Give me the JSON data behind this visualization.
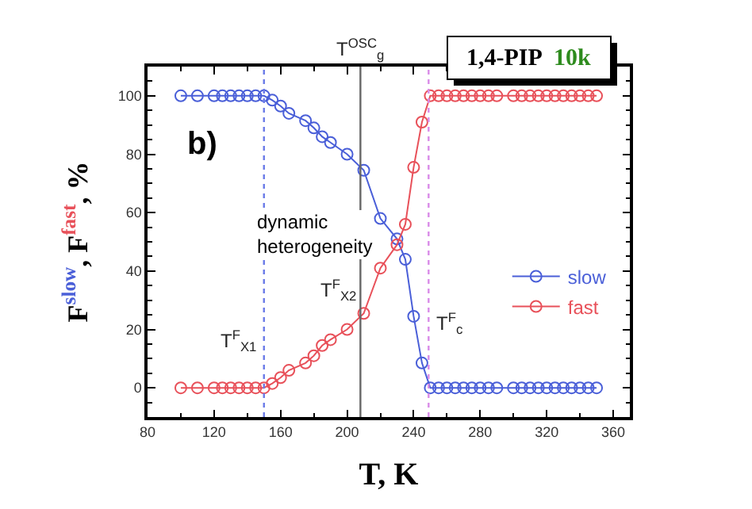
{
  "chart_data": {
    "type": "line",
    "title": "1,4-PIP",
    "subtitle": "10k",
    "xlabel": "T, K",
    "ylabel": "F$^{slow}$, F$^{fast}$, %",
    "xlim": [
      80,
      370
    ],
    "xticks": [
      80,
      120,
      160,
      200,
      240,
      280,
      320,
      360
    ],
    "ylim": [
      -10,
      110
    ],
    "yticks": [
      0,
      20,
      40,
      60,
      80,
      100
    ],
    "x": [
      100,
      110,
      120,
      125,
      130,
      135,
      140,
      145,
      150,
      155,
      160,
      165,
      175,
      180,
      185,
      190,
      200,
      210,
      220,
      230,
      235,
      240,
      245,
      250,
      255,
      260,
      265,
      270,
      275,
      280,
      285,
      290,
      300,
      305,
      310,
      315,
      320,
      325,
      330,
      335,
      340,
      345,
      350
    ],
    "series": [
      {
        "name": "slow",
        "color": "#4a5fd8",
        "values": [
          100,
          100,
          100,
          100,
          100,
          100,
          100,
          100,
          100,
          98.5,
          96.5,
          94,
          91.5,
          89,
          86,
          84,
          80,
          74.5,
          58,
          51,
          44,
          24.5,
          8.5,
          0,
          0,
          0,
          0,
          0,
          0,
          0,
          0,
          0,
          0,
          0,
          0,
          0,
          0,
          0,
          0,
          0,
          0,
          0,
          0
        ]
      },
      {
        "name": "fast",
        "color": "#e8515a",
        "values": [
          0,
          0,
          0,
          0,
          0,
          0,
          0,
          0,
          0,
          1.5,
          3.5,
          6,
          8.5,
          11,
          14.5,
          16.5,
          20,
          25.5,
          41,
          49,
          56,
          75.5,
          91,
          100,
          100,
          100,
          100,
          100,
          100,
          100,
          100,
          100,
          100,
          100,
          100,
          100,
          100,
          100,
          100,
          100,
          100,
          100,
          100
        ]
      }
    ],
    "ref_lines": [
      {
        "axis": "x",
        "value": 150,
        "label": "T$^{F}$$_{X1}$",
        "color": "#6b7be8",
        "line_style": "dotted"
      },
      {
        "axis": "x",
        "value": 208,
        "label": "T$^{OSC}$$_{g}$",
        "color": "#666666",
        "line_style": "solid"
      },
      {
        "axis": "x",
        "value": 249,
        "label": "T$^{F}$$_{c}$",
        "color": "#d98be8",
        "line_style": "dotted"
      }
    ],
    "annotations": [
      "b)",
      "dynamic heterogeneity",
      {
        "text": "T$^{F}$$_{X2}$",
        "x": 210,
        "y": 25.5
      }
    ],
    "marker": "circle",
    "line_style": "solid",
    "legend": "bottom right"
  }
}
